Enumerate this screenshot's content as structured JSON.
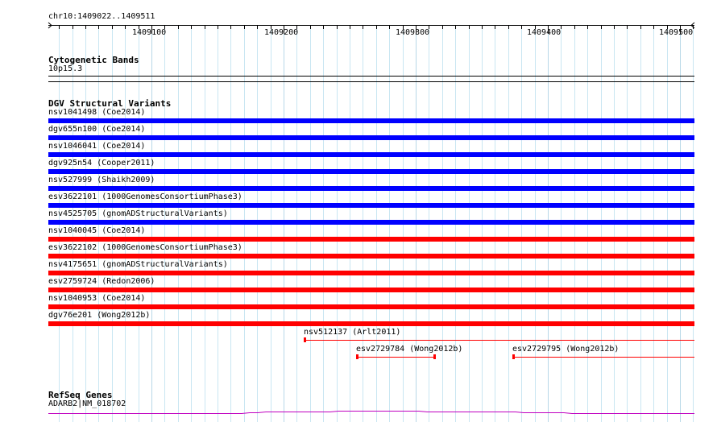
{
  "coordinate": "chr10:1409022..1409511",
  "ruler": {
    "ticks": [
      {
        "pos": 1409100,
        "label": "1409100"
      },
      {
        "pos": 1409200,
        "label": "1409200"
      },
      {
        "pos": 1409300,
        "label": "1409300"
      },
      {
        "pos": 1409400,
        "label": "1409400"
      },
      {
        "pos": 1409500,
        "label": "1409500"
      }
    ]
  },
  "cytobands": {
    "title": "Cytogenetic Bands",
    "band": "10p15.3"
  },
  "dgv": {
    "title": "DGV Structural Variants",
    "colors": {
      "loss": "#ff0000",
      "gain": "#0000ff",
      "partial": "#ff0000"
    },
    "features": [
      {
        "label": "nsv1041498 (Coe2014)",
        "color": "#0000ff"
      },
      {
        "label": "dgv655n100 (Coe2014)",
        "color": "#0000ff"
      },
      {
        "label": "nsv1046041 (Coe2014)",
        "color": "#0000ff"
      },
      {
        "label": "dgv925n54 (Cooper2011)",
        "color": "#0000ff"
      },
      {
        "label": "nsv527999 (Shaikh2009)",
        "color": "#0000ff"
      },
      {
        "label": "esv3622101 (1000GenomesConsortiumPhase3)",
        "color": "#0000ff"
      },
      {
        "label": "nsv4525705 (gnomADStructuralVariants)",
        "color": "#0000ff"
      },
      {
        "label": "nsv1040045 (Coe2014)",
        "color": "#ff0000"
      },
      {
        "label": "esv3622102 (1000GenomesConsortiumPhase3)",
        "color": "#ff0000"
      },
      {
        "label": "nsv4175651 (gnomADStructuralVariants)",
        "color": "#ff0000"
      },
      {
        "label": "esv2759724 (Redon2006)",
        "color": "#ff0000"
      },
      {
        "label": "nsv1040953 (Coe2014)",
        "color": "#ff0000"
      },
      {
        "label": "dgv76e201 (Wong2012b)",
        "color": "#ff0000"
      }
    ],
    "partial": [
      {
        "label": "nsv512137 (Arlt2011)"
      },
      {
        "label": "esv2729784 (Wong2012b)"
      },
      {
        "label": "esv2729795 (Wong2012b)"
      }
    ]
  },
  "refseq": {
    "title": "RefSeq Genes",
    "gene": "ADARB2|NM_018702",
    "color": "#c000c0"
  }
}
